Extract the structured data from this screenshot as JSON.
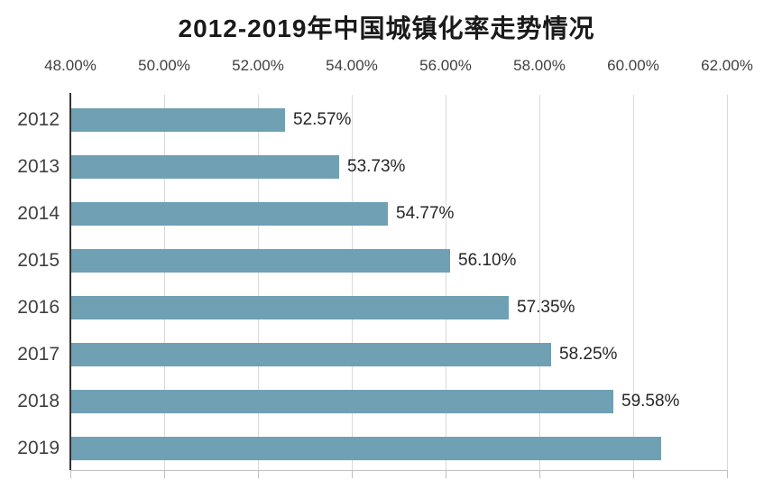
{
  "chart_data": {
    "type": "bar",
    "orientation": "horizontal",
    "title": "2012-2019年中国城镇化率走势情况",
    "categories": [
      "2012",
      "2013",
      "2014",
      "2015",
      "2016",
      "2017",
      "2018",
      "2019"
    ],
    "values": [
      52.57,
      53.73,
      54.77,
      56.1,
      57.35,
      58.25,
      59.58,
      60.6
    ],
    "data_labels": [
      "52.57%",
      "53.73%",
      "54.77%",
      "56.10%",
      "57.35%",
      "58.25%",
      "59.58%",
      ""
    ],
    "x_axis": {
      "position": "top",
      "min": 48,
      "max": 62,
      "tick_values": [
        48,
        50,
        52,
        54,
        56,
        58,
        60,
        62
      ],
      "tick_labels": [
        "48.00%",
        "50.00%",
        "52.00%",
        "54.00%",
        "56.00%",
        "58.00%",
        "60.00%",
        "62.00%"
      ]
    },
    "ylabel": "",
    "xlabel": "",
    "grid": true,
    "legend": false,
    "colors": {
      "bar": "#6fa0b4",
      "title_text": "#1a1a1a",
      "axis_tick_text": "#404040",
      "category_text": "#404040",
      "value_label_text": "#262626",
      "gridline": "#d9d9d9",
      "y_axis_line": "#333333",
      "baseline": "#bfbfbf"
    }
  }
}
